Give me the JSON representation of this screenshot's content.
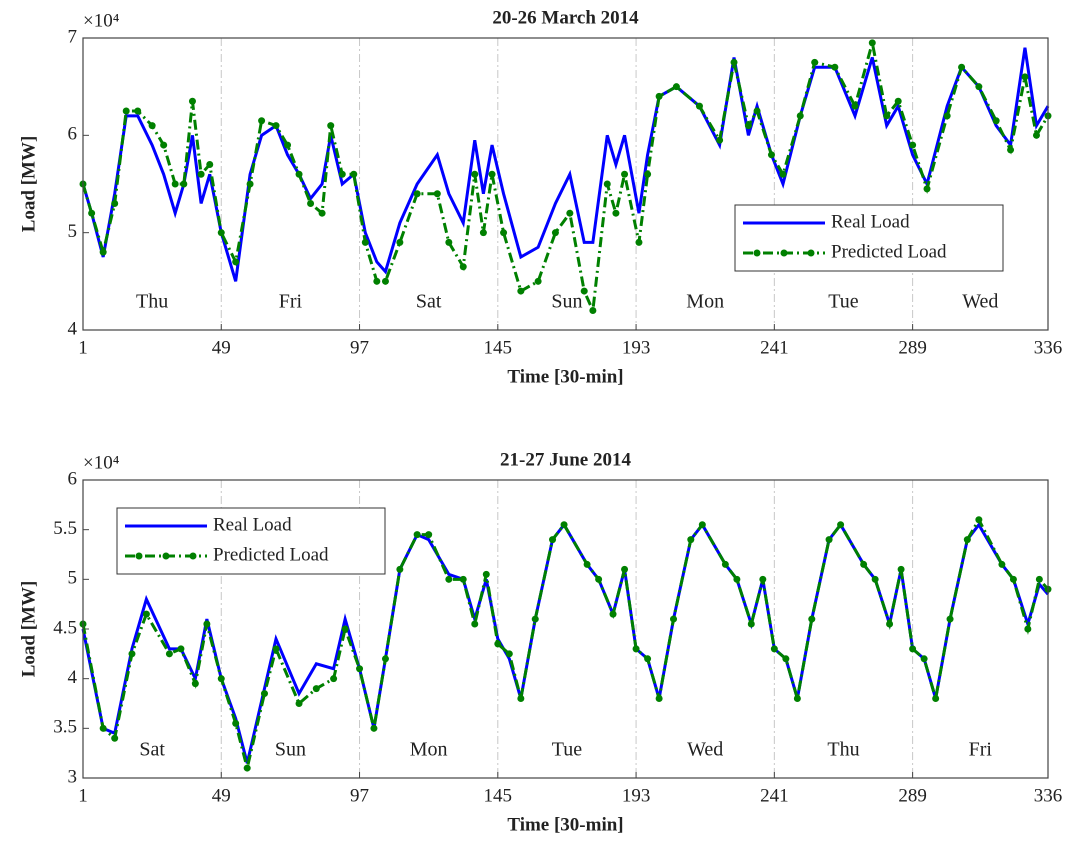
{
  "chart_data": [
    {
      "type": "line",
      "title": "20-26 March 2014",
      "xlabel": "Time [30-min]",
      "ylabel": "Load [MW]",
      "y_multiplier": "×10⁴",
      "xlim": [
        1,
        336
      ],
      "xticks": [
        1,
        49,
        97,
        145,
        193,
        241,
        289,
        336
      ],
      "ylim": [
        4,
        7
      ],
      "yticks": [
        4,
        5,
        6,
        7
      ],
      "grid": "x",
      "legend": "lower right",
      "day_labels": [
        "Thu",
        "Fri",
        "Sat",
        "Sun",
        "Mon",
        "Tue",
        "Wed"
      ],
      "x": [
        1,
        4,
        8,
        12,
        16,
        20,
        25,
        29,
        33,
        36,
        39,
        42,
        45,
        49,
        54,
        59,
        63,
        68,
        72,
        76,
        80,
        84,
        87,
        91,
        95,
        99,
        103,
        106,
        111,
        117,
        124,
        128,
        133,
        137,
        140,
        143,
        147,
        153,
        159,
        165,
        170,
        175,
        178,
        183,
        186,
        189,
        194,
        197,
        201,
        207,
        215,
        222,
        227,
        232,
        235,
        240,
        244,
        250,
        255,
        262,
        269,
        275,
        280,
        284,
        289,
        294,
        301,
        306,
        312,
        318,
        323,
        328,
        332,
        336
      ],
      "series": [
        {
          "name": "Real Load",
          "color": "#0000ff",
          "linestyle": "solid",
          "marker": "none",
          "values": [
            5.5,
            5.2,
            4.75,
            5.4,
            6.2,
            6.2,
            5.9,
            5.6,
            5.2,
            5.5,
            6.0,
            5.3,
            5.6,
            5.0,
            4.5,
            5.6,
            6.0,
            6.1,
            5.8,
            5.6,
            5.35,
            5.5,
            6.0,
            5.5,
            5.6,
            5.0,
            4.7,
            4.6,
            5.1,
            5.5,
            5.8,
            5.4,
            5.1,
            5.95,
            5.4,
            5.9,
            5.4,
            4.75,
            4.85,
            5.3,
            5.6,
            4.9,
            4.9,
            6.0,
            5.7,
            6.0,
            5.2,
            5.8,
            6.4,
            6.5,
            6.3,
            5.9,
            6.8,
            6.0,
            6.3,
            5.8,
            5.5,
            6.2,
            6.7,
            6.7,
            6.2,
            6.8,
            6.1,
            6.3,
            5.8,
            5.5,
            6.3,
            6.7,
            6.5,
            6.1,
            5.9,
            6.9,
            6.1,
            6.3
          ]
        },
        {
          "name": "Predicted Load",
          "color": "#008000",
          "linestyle": "dashdot",
          "marker": "dot",
          "values": [
            5.5,
            5.2,
            4.8,
            5.3,
            6.25,
            6.25,
            6.1,
            5.9,
            5.5,
            5.5,
            6.35,
            5.6,
            5.7,
            5.0,
            4.7,
            5.5,
            6.15,
            6.1,
            5.9,
            5.6,
            5.3,
            5.2,
            6.1,
            5.6,
            5.6,
            4.9,
            4.5,
            4.5,
            4.9,
            5.4,
            5.4,
            4.9,
            4.65,
            5.6,
            5.0,
            5.6,
            5.0,
            4.4,
            4.5,
            5.0,
            5.2,
            4.4,
            4.2,
            5.5,
            5.2,
            5.6,
            4.9,
            5.6,
            6.4,
            6.5,
            6.3,
            5.95,
            6.75,
            6.1,
            6.25,
            5.8,
            5.6,
            6.2,
            6.75,
            6.7,
            6.3,
            6.95,
            6.2,
            6.35,
            5.9,
            5.45,
            6.2,
            6.7,
            6.5,
            6.15,
            5.85,
            6.6,
            6.0,
            6.2
          ]
        }
      ]
    },
    {
      "type": "line",
      "title": "21-27 June 2014",
      "xlabel": "Time [30-min]",
      "ylabel": "Load [MW]",
      "y_multiplier": "×10⁴",
      "xlim": [
        1,
        336
      ],
      "xticks": [
        1,
        49,
        97,
        145,
        193,
        241,
        289,
        336
      ],
      "ylim": [
        3,
        6
      ],
      "yticks": [
        3,
        3.5,
        4,
        4.5,
        5,
        5.5,
        6
      ],
      "grid": "x",
      "legend": "upper left",
      "day_labels": [
        "Sat",
        "Sun",
        "Mon",
        "Tue",
        "Wed",
        "Thu",
        "Fri"
      ],
      "x": [
        1,
        8,
        12,
        18,
        23,
        31,
        35,
        40,
        44,
        49,
        54,
        58,
        64,
        68,
        76,
        82,
        88,
        92,
        97,
        102,
        106,
        111,
        117,
        121,
        128,
        133,
        137,
        141,
        145,
        149,
        153,
        158,
        164,
        168,
        176,
        180,
        185,
        189,
        193,
        197,
        201,
        206,
        212,
        216,
        224,
        228,
        233,
        237,
        241,
        245,
        249,
        254,
        260,
        264,
        272,
        276,
        281,
        285,
        289,
        293,
        297,
        302,
        308,
        312,
        320,
        324,
        329,
        333,
        336
      ],
      "series": [
        {
          "name": "Real Load",
          "color": "#0000ff",
          "linestyle": "solid",
          "marker": "none",
          "values": [
            4.5,
            3.5,
            3.45,
            4.3,
            4.8,
            4.3,
            4.3,
            4.0,
            4.6,
            4.0,
            3.6,
            3.15,
            3.9,
            4.4,
            3.85,
            4.15,
            4.1,
            4.6,
            4.1,
            3.5,
            4.2,
            5.1,
            5.45,
            5.4,
            5.05,
            5.0,
            4.6,
            5.0,
            4.4,
            4.2,
            3.8,
            4.6,
            5.4,
            5.55,
            5.15,
            5.0,
            4.65,
            5.1,
            4.3,
            4.2,
            3.8,
            4.6,
            5.4,
            5.55,
            5.15,
            5.0,
            4.55,
            5.0,
            4.3,
            4.2,
            3.8,
            4.6,
            5.4,
            5.55,
            5.15,
            5.0,
            4.55,
            5.1,
            4.3,
            4.2,
            3.8,
            4.6,
            5.4,
            5.55,
            5.15,
            5.0,
            4.55,
            4.95,
            4.85
          ]
        },
        {
          "name": "Predicted Load",
          "color": "#008000",
          "linestyle": "dashdot",
          "marker": "dot",
          "values": [
            4.55,
            3.5,
            3.4,
            4.25,
            4.65,
            4.25,
            4.3,
            3.95,
            4.55,
            4.0,
            3.55,
            3.1,
            3.85,
            4.3,
            3.75,
            3.9,
            4.0,
            4.5,
            4.1,
            3.5,
            4.2,
            5.1,
            5.45,
            5.45,
            5.0,
            5.0,
            4.55,
            5.05,
            4.35,
            4.25,
            3.8,
            4.6,
            5.4,
            5.55,
            5.15,
            5.0,
            4.65,
            5.1,
            4.3,
            4.2,
            3.8,
            4.6,
            5.4,
            5.55,
            5.15,
            5.0,
            4.55,
            5.0,
            4.3,
            4.2,
            3.8,
            4.6,
            5.4,
            5.55,
            5.15,
            5.0,
            4.55,
            5.1,
            4.3,
            4.2,
            3.8,
            4.6,
            5.4,
            5.6,
            5.15,
            5.0,
            4.5,
            5.0,
            4.9
          ]
        }
      ]
    }
  ]
}
